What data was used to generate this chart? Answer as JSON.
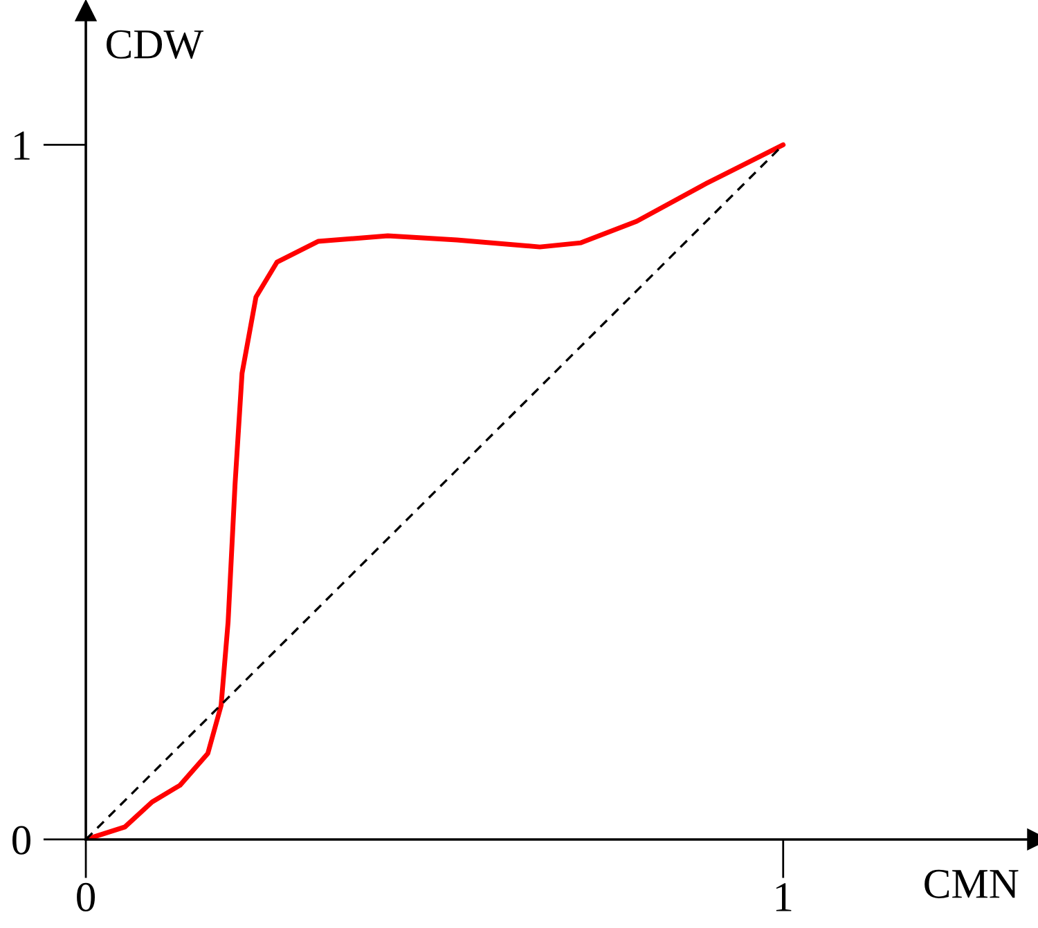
{
  "chart_data": {
    "type": "line",
    "xlabel": "CMN",
    "ylabel": "CDW",
    "xlim": [
      0,
      1.365
    ],
    "ylim": [
      0,
      1.193
    ],
    "xticks": [
      {
        "value": 0,
        "label": "0"
      },
      1
    ],
    "yticks": [
      {
        "value": 0,
        "label": "0"
      },
      1
    ],
    "grid": false,
    "legend": false,
    "marker": "none",
    "series": [
      {
        "color": "#ff0000",
        "line_style": "solid",
        "x": [
          0,
          0.056,
          0.095,
          0.135,
          0.175,
          0.194,
          0.204,
          0.214,
          0.224,
          0.244,
          0.274,
          0.333,
          0.433,
          0.532,
          0.651,
          0.71,
          0.79,
          0.889,
          1
        ],
        "values": [
          0,
          0.018,
          0.054,
          0.078,
          0.124,
          0.193,
          0.313,
          0.512,
          0.671,
          0.781,
          0.831,
          0.861,
          0.869,
          0.863,
          0.853,
          0.859,
          0.89,
          0.944,
          1
        ]
      },
      {
        "color": "#000000",
        "line_style": "dashed",
        "x": [
          0,
          1
        ],
        "values": [
          0,
          1
        ]
      }
    ]
  }
}
